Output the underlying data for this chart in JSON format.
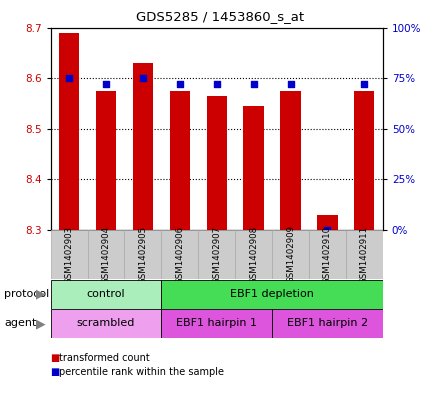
{
  "title": "GDS5285 / 1453860_s_at",
  "samples": [
    "GSM1402903",
    "GSM1402904",
    "GSM1402905",
    "GSM1402906",
    "GSM1402907",
    "GSM1402908",
    "GSM1402909",
    "GSM1402910",
    "GSM1402911"
  ],
  "transformed_counts": [
    8.69,
    8.575,
    8.63,
    8.575,
    8.565,
    8.545,
    8.575,
    8.33,
    8.575
  ],
  "percentile_ranks": [
    75,
    72,
    75,
    72,
    72,
    72,
    72,
    0,
    72
  ],
  "ylim_left": [
    8.3,
    8.7
  ],
  "ylim_right": [
    0,
    100
  ],
  "yticks_left": [
    8.3,
    8.4,
    8.5,
    8.6,
    8.7
  ],
  "yticks_right": [
    0,
    25,
    50,
    75,
    100
  ],
  "bar_color": "#cc0000",
  "dot_color": "#0000cc",
  "bar_width": 0.55,
  "protocol_labels": [
    {
      "label": "control",
      "start": 0,
      "end": 3,
      "color": "#aaeebb"
    },
    {
      "label": "EBF1 depletion",
      "start": 3,
      "end": 9,
      "color": "#44dd55"
    }
  ],
  "agent_labels": [
    {
      "label": "scrambled",
      "start": 0,
      "end": 3,
      "color": "#eea0ee"
    },
    {
      "label": "EBF1 hairpin 1",
      "start": 3,
      "end": 6,
      "color": "#dd55dd"
    },
    {
      "label": "EBF1 hairpin 2",
      "start": 6,
      "end": 9,
      "color": "#dd55dd"
    }
  ],
  "legend_items": [
    {
      "label": "transformed count",
      "color": "#cc0000"
    },
    {
      "label": "percentile rank within the sample",
      "color": "#0000cc"
    }
  ],
  "bg_color": "#ffffff",
  "sample_bg_color": "#cccccc",
  "sample_border_color": "#aaaaaa"
}
